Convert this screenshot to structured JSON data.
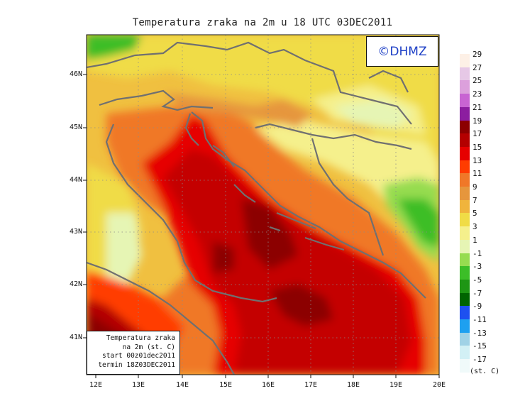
{
  "title": "Temperatura zraka na 2m u 18 UTC 03DEC2011",
  "logo_text": "©DHMZ",
  "info_box": {
    "line1": "Temperatura zraka",
    "line2": "na 2m (st. C)",
    "line3": "start 00z01dec2011",
    "line4": "termin 18Z03DEC2011"
  },
  "x_ticks": [
    "12E",
    "13E",
    "14E",
    "15E",
    "16E",
    "17E",
    "18E",
    "19E",
    "20E"
  ],
  "y_ticks": [
    "46N",
    "45N",
    "44N",
    "43N",
    "42N",
    "41N"
  ],
  "colorbar": {
    "unit": "(st. C)",
    "levels": [
      {
        "label": "29",
        "color": "#fdf0e6"
      },
      {
        "label": "27",
        "color": "#e6c8e6"
      },
      {
        "label": "25",
        "color": "#dca0dc"
      },
      {
        "label": "23",
        "color": "#c864d2"
      },
      {
        "label": "21",
        "color": "#8c1ea0"
      },
      {
        "label": "19",
        "color": "#8c0000"
      },
      {
        "label": "17",
        "color": "#b40000"
      },
      {
        "label": "15",
        "color": "#e60000"
      },
      {
        "label": "13",
        "color": "#ff3c00"
      },
      {
        "label": "11",
        "color": "#f07828"
      },
      {
        "label": "9",
        "color": "#e6963c"
      },
      {
        "label": "7",
        "color": "#f0b43c"
      },
      {
        "label": "5",
        "color": "#f0dc46"
      },
      {
        "label": "3",
        "color": "#f5f08c"
      },
      {
        "label": "1",
        "color": "#e6f5b4"
      },
      {
        "label": "-1",
        "color": "#96dc50"
      },
      {
        "label": "-3",
        "color": "#3cbe28"
      },
      {
        "label": "-5",
        "color": "#1e9614"
      },
      {
        "label": "-7",
        "color": "#006400"
      },
      {
        "label": "-9",
        "color": "#1e50f0"
      },
      {
        "label": "-11",
        "color": "#1ea0f0"
      },
      {
        "label": "-13",
        "color": "#a0d2e6"
      },
      {
        "label": "-15",
        "color": "#d2f0f5"
      },
      {
        "label": "-17",
        "color": "#f0fafa"
      }
    ]
  }
}
